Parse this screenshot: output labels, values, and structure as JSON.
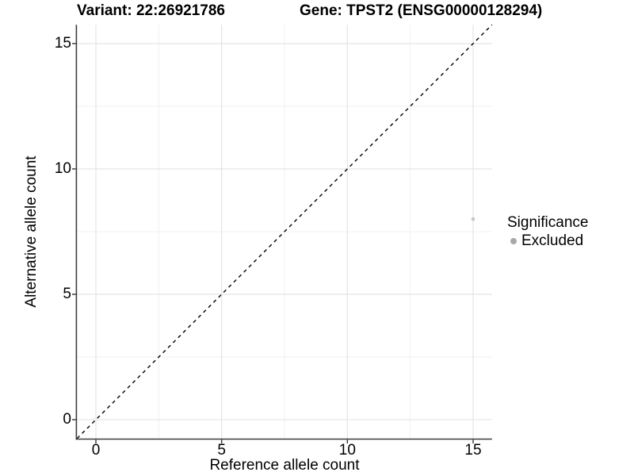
{
  "chart_data": {
    "type": "scatter",
    "titles": {
      "variant": "Variant: 22:26921786",
      "gene": "Gene: TPST2 (ENSG00000128294)"
    },
    "xlabel": "Reference allele count",
    "ylabel": "Alternative allele count",
    "xlim": [
      -0.75,
      15.75
    ],
    "ylim": [
      -0.75,
      15.75
    ],
    "x_ticks": [
      0,
      5,
      10,
      15
    ],
    "y_ticks": [
      0,
      5,
      10,
      15
    ],
    "x_minor_ticks": [
      2.5,
      7.5,
      12.5
    ],
    "y_minor_ticks": [
      2.5,
      7.5,
      12.5
    ],
    "grid": "major+minor",
    "points": [
      {
        "x": 15,
        "y": 8,
        "series": "Excluded"
      }
    ],
    "reference_line": {
      "slope": 1,
      "intercept": 0,
      "style": "dashed",
      "color": "#000000"
    },
    "legend": {
      "title": "Significance",
      "position": "right",
      "entries": [
        {
          "label": "Excluded",
          "color": "#a8a8a8"
        }
      ]
    },
    "colors": {
      "background": "#ffffff",
      "major_grid": "#e2e2e2",
      "minor_grid": "#efefef",
      "axis_line": "#3c3c3c",
      "tick_mark": "#333333",
      "point": "#c6c6c6",
      "text": "#000000"
    }
  }
}
